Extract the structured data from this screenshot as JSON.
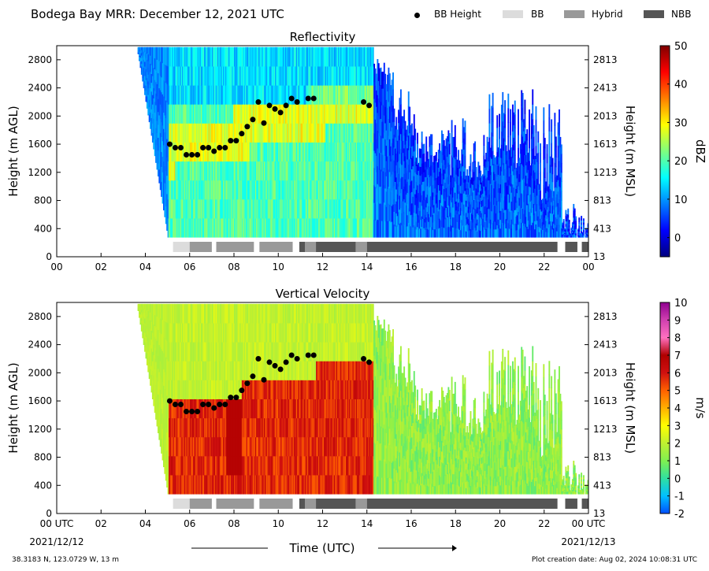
{
  "header": {
    "title": "Bodega Bay MRR:  December 12, 2021 UTC",
    "legend": [
      {
        "label": "BB Height",
        "kind": "dot",
        "color": "#000000"
      },
      {
        "label": "BB",
        "kind": "swatch",
        "color": "#dcdcdc"
      },
      {
        "label": "Hybrid",
        "kind": "swatch",
        "color": "#999999"
      },
      {
        "label": "NBB",
        "kind": "swatch",
        "color": "#555555"
      }
    ]
  },
  "footer": {
    "location": "38.3183 N, 123.0729 W, 13 m",
    "created": "Plot creation date: Aug 02, 2024 10:08:31 UTC",
    "x_title": "Time (UTC)"
  },
  "chart_data": [
    {
      "type": "heatmap",
      "title": "Reflectivity",
      "ylabel": "Height (m AGL)",
      "ylabel_right": "Height (m MSL)",
      "xlim": [
        0,
        24
      ],
      "ylim": [
        0,
        3000
      ],
      "x_ticks": [
        "00",
        "02",
        "04",
        "06",
        "08",
        "10",
        "12",
        "14",
        "16",
        "18",
        "20",
        "22",
        "00"
      ],
      "y_ticks": [
        0,
        400,
        800,
        1200,
        1600,
        2000,
        2400,
        2800
      ],
      "y_ticks_right": [
        13,
        413,
        813,
        1213,
        1613,
        2013,
        2413,
        2813
      ],
      "colorbar": {
        "label": "dBZ",
        "min": -5,
        "max": 50,
        "ticks": [
          0,
          10,
          20,
          30,
          40,
          50
        ],
        "colors": [
          "#00007f",
          "#0000ff",
          "#007fff",
          "#00ffff",
          "#7fff7f",
          "#ffff00",
          "#ff7f00",
          "#ff0000",
          "#7f0000"
        ]
      }
    },
    {
      "type": "heatmap",
      "title": "Vertical Velocity",
      "ylabel": "Height (m AGL)",
      "ylabel_right": "Height (m MSL)",
      "xlim": [
        0,
        24
      ],
      "ylim": [
        0,
        3000
      ],
      "x_ticks": [
        "00 UTC",
        "02",
        "04",
        "06",
        "08",
        "10",
        "12",
        "14",
        "16",
        "18",
        "20",
        "22",
        "00 UTC"
      ],
      "x_date_start": "2021/12/12",
      "x_date_end": "2021/12/13",
      "y_ticks": [
        0,
        400,
        800,
        1200,
        1600,
        2000,
        2400,
        2800
      ],
      "y_ticks_right": [
        13,
        413,
        813,
        1213,
        1613,
        2013,
        2413,
        2813
      ],
      "colorbar": {
        "label": "m/s",
        "min": -2,
        "max": 10,
        "ticks": [
          -2,
          -1,
          0,
          1,
          2,
          3,
          4,
          5,
          6,
          7,
          8,
          9,
          10
        ],
        "colors": [
          "#0050ff",
          "#00c0ff",
          "#30e0a0",
          "#80f050",
          "#c0f030",
          "#ffff00",
          "#ffb000",
          "#ff6000",
          "#d01010",
          "#b00000",
          "#ff70c0",
          "#d040b0",
          "#900090"
        ]
      }
    }
  ],
  "bb_height": {
    "hours": [
      5.1,
      5.35,
      5.6,
      5.85,
      6.1,
      6.35,
      6.6,
      6.85,
      7.1,
      7.35,
      7.6,
      7.85,
      8.1,
      8.35,
      8.6,
      8.85,
      9.1,
      9.35,
      9.6,
      9.85,
      10.1,
      10.35,
      10.6,
      10.85,
      11.35,
      11.6,
      13.85,
      14.1
    ],
    "heights": [
      1600,
      1550,
      1550,
      1450,
      1450,
      1450,
      1550,
      1550,
      1500,
      1550,
      1550,
      1650,
      1650,
      1750,
      1850,
      1950,
      2200,
      1900,
      2150,
      2100,
      2050,
      2150,
      2250,
      2200,
      2250,
      2250,
      2200,
      2150
    ]
  },
  "precip_type": [
    {
      "start": 5.25,
      "end": 6.0,
      "type": "BB"
    },
    {
      "start": 6.0,
      "end": 7.0,
      "type": "Hybrid"
    },
    {
      "start": 7.2,
      "end": 8.9,
      "type": "Hybrid"
    },
    {
      "start": 9.15,
      "end": 10.65,
      "type": "Hybrid"
    },
    {
      "start": 10.95,
      "end": 11.2,
      "type": "NBB"
    },
    {
      "start": 11.2,
      "end": 11.7,
      "type": "Hybrid"
    },
    {
      "start": 11.7,
      "end": 13.5,
      "type": "NBB"
    },
    {
      "start": 13.5,
      "end": 14.0,
      "type": "Hybrid"
    },
    {
      "start": 14.0,
      "end": 22.6,
      "type": "NBB"
    },
    {
      "start": 22.95,
      "end": 23.5,
      "type": "NBB"
    },
    {
      "start": 23.7,
      "end": 24.0,
      "type": "NBB"
    }
  ]
}
